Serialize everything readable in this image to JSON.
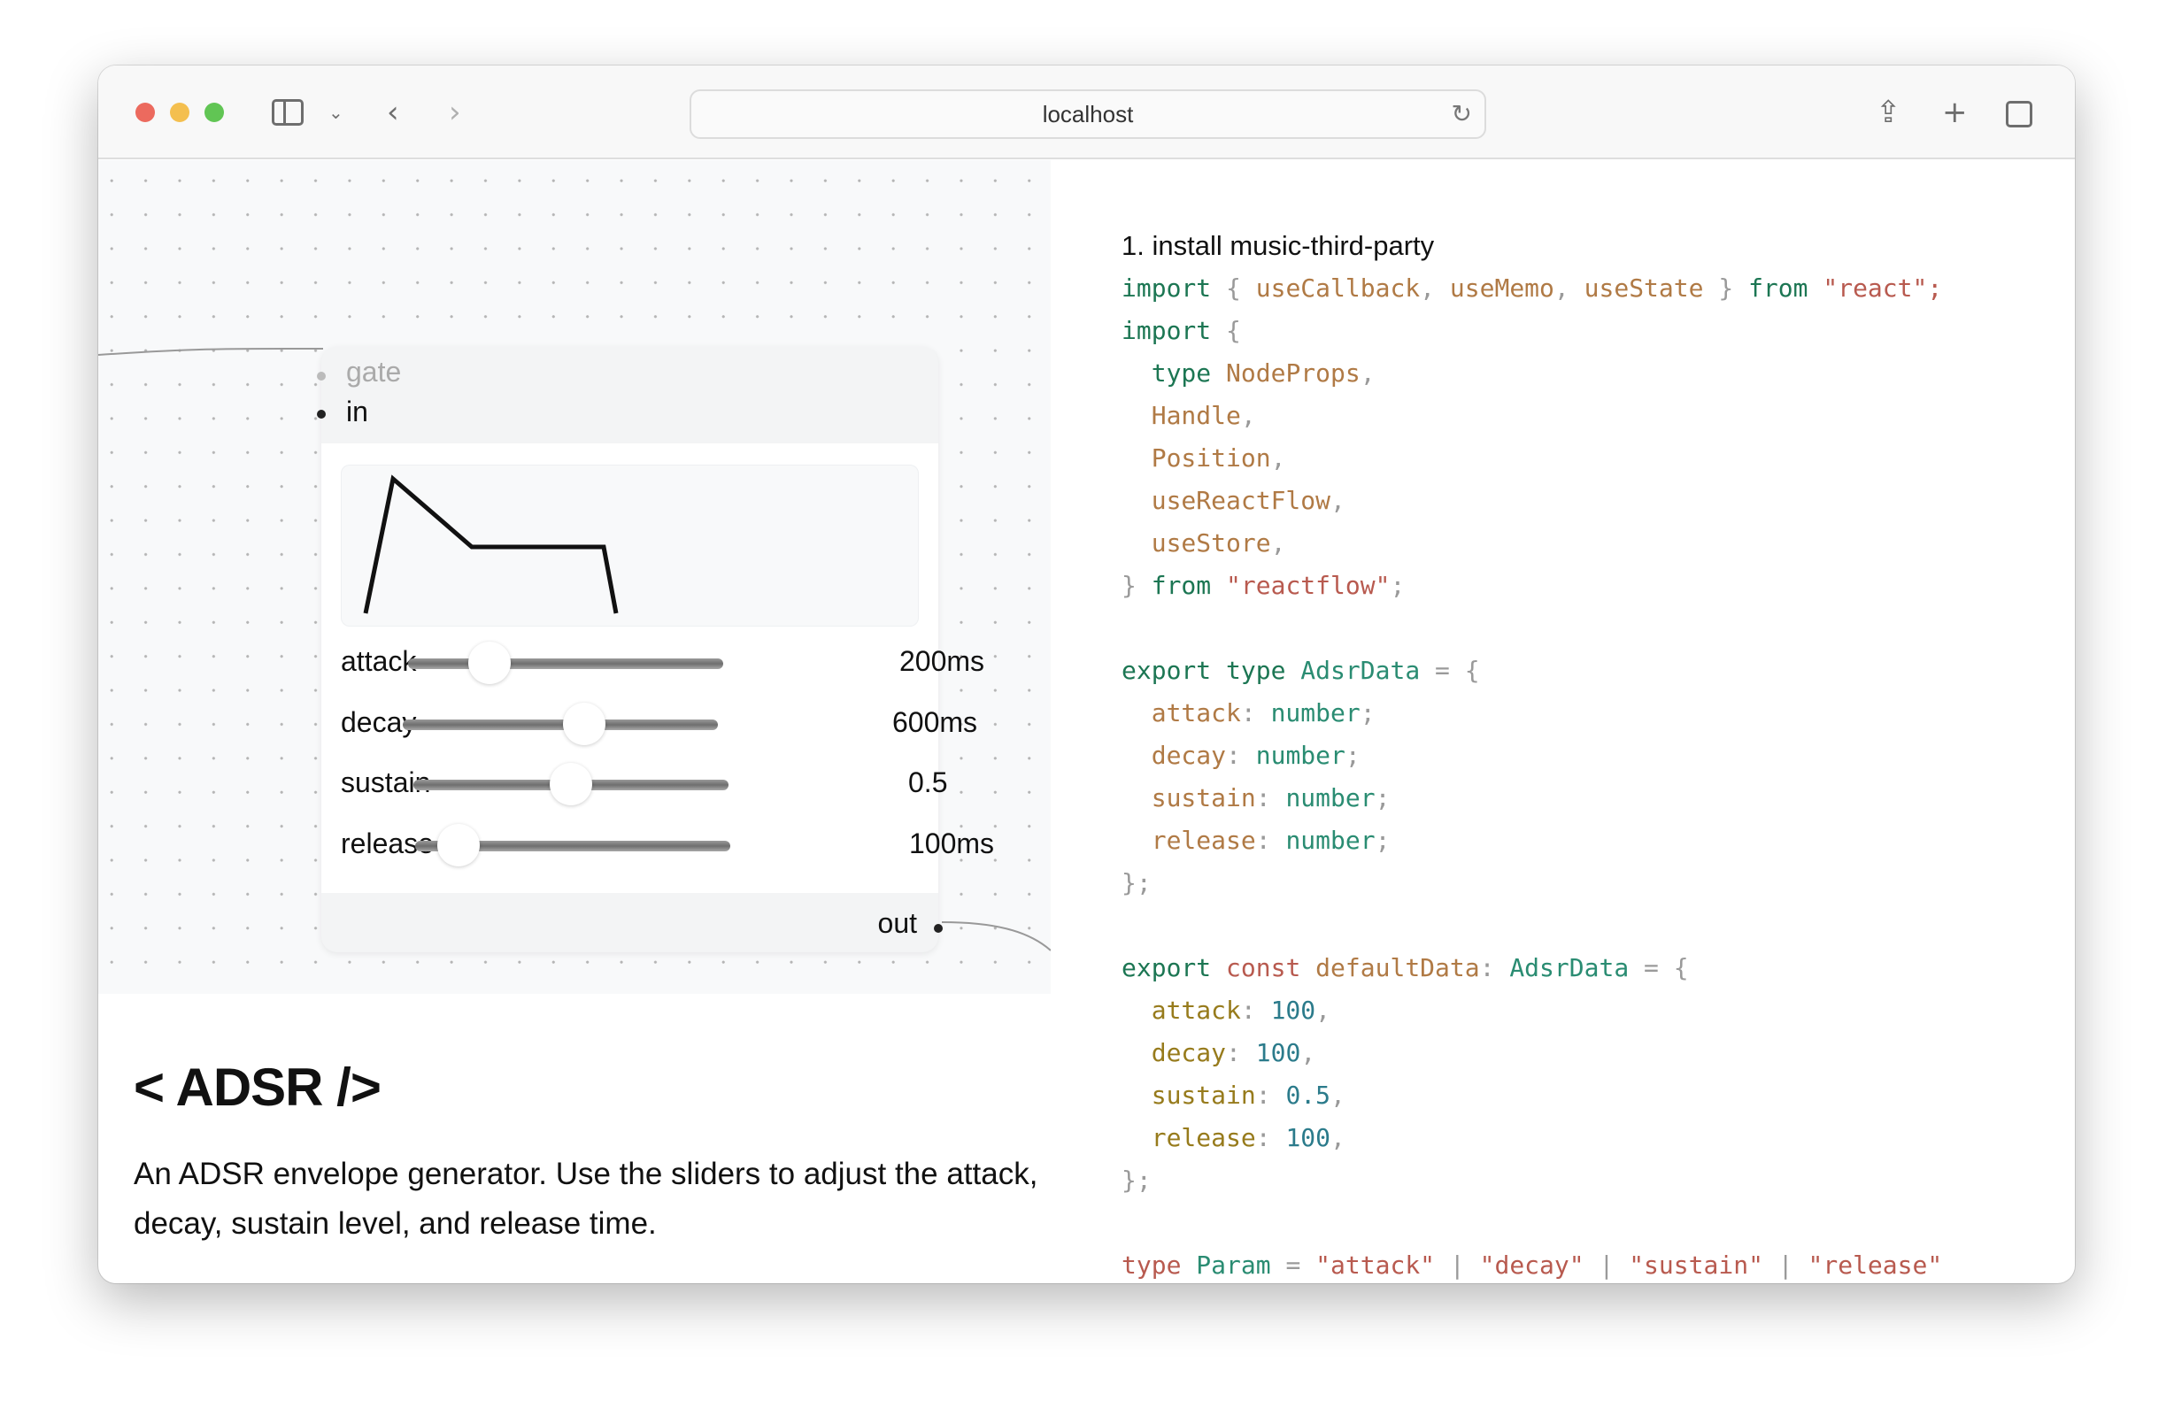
{
  "browser": {
    "url": "localhost",
    "traffic_lights": {
      "close": "#ec6a5e",
      "minimize": "#f4bf4f",
      "maximize": "#61c554"
    }
  },
  "node": {
    "inputs": [
      {
        "label": "gate",
        "connected": false
      },
      {
        "label": "in",
        "connected": true
      }
    ],
    "output": "out",
    "sliders": [
      {
        "label": "attack",
        "value": "200ms",
        "position": 0.24
      },
      {
        "label": "decay",
        "value": "600ms",
        "position": 0.58
      },
      {
        "label": "sustain",
        "value": "0.5",
        "position": 0.5
      },
      {
        "label": "release",
        "value": "100ms",
        "position": 0.11
      }
    ]
  },
  "description": {
    "title": "< ADSR />",
    "text": "An ADSR envelope generator. Use the sliders to adjust the attack, decay, sustain level, and release time."
  },
  "code": {
    "step": "1. install music-third-party",
    "colors": {
      "kw": "#1c7653",
      "id": "#b07a45",
      "str": "#b85a4f",
      "p": "#9a9a9a",
      "ty": "#2a8c72",
      "prop": "#977b1c",
      "num": "#2b7b8b",
      "red": "#b85a4f"
    },
    "lines": [
      [
        [
          "import",
          "kw"
        ],
        [
          " { ",
          "p"
        ],
        [
          "useCallback",
          "id"
        ],
        [
          ", ",
          "p"
        ],
        [
          "useMemo",
          "id"
        ],
        [
          ", ",
          "p"
        ],
        [
          "useState",
          "id"
        ],
        [
          " } ",
          "p"
        ],
        [
          "from",
          "kw"
        ],
        [
          " \"react\";",
          "str"
        ]
      ],
      [
        [
          "import",
          "kw"
        ],
        [
          " {",
          "p"
        ]
      ],
      [
        [
          "  type",
          "kw"
        ],
        [
          " NodeProps",
          "id"
        ],
        [
          ",",
          "p"
        ]
      ],
      [
        [
          "  Handle",
          "id"
        ],
        [
          ",",
          "p"
        ]
      ],
      [
        [
          "  Position",
          "id"
        ],
        [
          ",",
          "p"
        ]
      ],
      [
        [
          "  useReactFlow",
          "id"
        ],
        [
          ",",
          "p"
        ]
      ],
      [
        [
          "  useStore",
          "id"
        ],
        [
          ",",
          "p"
        ]
      ],
      [
        [
          "} ",
          "p"
        ],
        [
          "from",
          "kw"
        ],
        [
          " \"reactflow\"",
          "str"
        ],
        [
          ";",
          "p"
        ]
      ],
      [],
      [
        [
          "export",
          "kw"
        ],
        [
          " type",
          "kw"
        ],
        [
          " AdsrData",
          "ty"
        ],
        [
          " = {",
          "p"
        ]
      ],
      [
        [
          "  attack",
          "id"
        ],
        [
          ": ",
          "p"
        ],
        [
          "number",
          "ty"
        ],
        [
          ";",
          "p"
        ]
      ],
      [
        [
          "  decay",
          "id"
        ],
        [
          ": ",
          "p"
        ],
        [
          "number",
          "ty"
        ],
        [
          ";",
          "p"
        ]
      ],
      [
        [
          "  sustain",
          "id"
        ],
        [
          ": ",
          "p"
        ],
        [
          "number",
          "ty"
        ],
        [
          ";",
          "p"
        ]
      ],
      [
        [
          "  release",
          "id"
        ],
        [
          ": ",
          "p"
        ],
        [
          "number",
          "ty"
        ],
        [
          ";",
          "p"
        ]
      ],
      [
        [
          "};",
          "p"
        ]
      ],
      [],
      [
        [
          "export",
          "kw"
        ],
        [
          " const",
          "red"
        ],
        [
          " defaultData",
          "id"
        ],
        [
          ": ",
          "p"
        ],
        [
          "AdsrData",
          "ty"
        ],
        [
          " = {",
          "p"
        ]
      ],
      [
        [
          "  attack",
          "prop"
        ],
        [
          ": ",
          "p"
        ],
        [
          "100",
          "num"
        ],
        [
          ",",
          "p"
        ]
      ],
      [
        [
          "  decay",
          "prop"
        ],
        [
          ": ",
          "p"
        ],
        [
          "100",
          "num"
        ],
        [
          ",",
          "p"
        ]
      ],
      [
        [
          "  sustain",
          "prop"
        ],
        [
          ": ",
          "p"
        ],
        [
          "0.5",
          "num"
        ],
        [
          ",",
          "p"
        ]
      ],
      [
        [
          "  release",
          "prop"
        ],
        [
          ": ",
          "p"
        ],
        [
          "100",
          "num"
        ],
        [
          ",",
          "p"
        ]
      ],
      [
        [
          "};",
          "p"
        ]
      ],
      [],
      [
        [
          "type",
          "red"
        ],
        [
          " Param",
          "ty"
        ],
        [
          " = ",
          "p"
        ],
        [
          "\"attack\"",
          "str"
        ],
        [
          " | ",
          "p"
        ],
        [
          "\"decay\"",
          "str"
        ],
        [
          " | ",
          "p"
        ],
        [
          "\"sustain\"",
          "str"
        ],
        [
          " | ",
          "p"
        ],
        [
          "\"release\"",
          "str"
        ]
      ]
    ]
  }
}
